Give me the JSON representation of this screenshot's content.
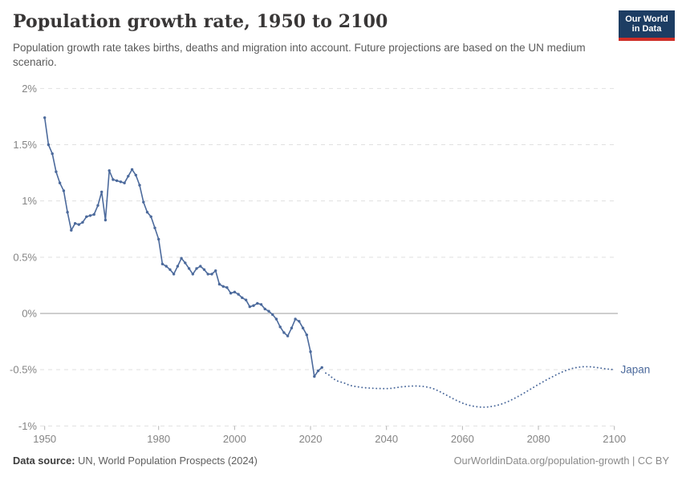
{
  "header": {
    "title": "Population growth rate, 1950 to 2100",
    "subtitle": "Population growth rate takes births, deaths and migration into account. Future projections are based on the UN medium scenario.",
    "logo": {
      "line1": "Our World",
      "line2": "in Data"
    }
  },
  "footer": {
    "source_label": "Data source:",
    "source_text": " UN, World Population Prospects (2024)",
    "credit": "OurWorldinData.org/population-growth | CC BY"
  },
  "chart_data": {
    "type": "line",
    "title": "Population growth rate, 1950 to 2100",
    "entity_label": "Japan",
    "xlabel": "",
    "ylabel": "",
    "xlim": [
      1950,
      2100
    ],
    "ylim": [
      -1,
      2
    ],
    "grid": true,
    "legend_position": "end-of-line-label",
    "x_ticks": [
      1950,
      1980,
      2000,
      2020,
      2040,
      2060,
      2080,
      2100
    ],
    "y_ticks": [
      {
        "value": 2,
        "label": "2%"
      },
      {
        "value": 1.5,
        "label": "1.5%"
      },
      {
        "value": 1,
        "label": "1%"
      },
      {
        "value": 0.5,
        "label": "0.5%"
      },
      {
        "value": 0,
        "label": "0%"
      },
      {
        "value": -0.5,
        "label": "-0.5%"
      },
      {
        "value": -1,
        "label": "-1%"
      }
    ],
    "series": [
      {
        "name": "Japan — estimates",
        "line_style": "solid",
        "markers": true,
        "start_year": 1950,
        "end_year": 2023,
        "x_step": 1,
        "values": [
          1.74,
          1.5,
          1.42,
          1.26,
          1.16,
          1.09,
          0.9,
          0.74,
          0.8,
          0.79,
          0.81,
          0.86,
          0.87,
          0.88,
          0.96,
          1.08,
          0.83,
          1.27,
          1.19,
          1.18,
          1.17,
          1.16,
          1.22,
          1.28,
          1.23,
          1.14,
          0.99,
          0.9,
          0.86,
          0.76,
          0.66,
          0.44,
          0.42,
          0.39,
          0.35,
          0.42,
          0.49,
          0.45,
          0.4,
          0.35,
          0.4,
          0.42,
          0.39,
          0.35,
          0.35,
          0.38,
          0.26,
          0.24,
          0.23,
          0.18,
          0.19,
          0.17,
          0.14,
          0.12,
          0.06,
          0.07,
          0.09,
          0.08,
          0.04,
          0.02,
          -0.01,
          -0.05,
          -0.12,
          -0.17,
          -0.2,
          -0.13,
          -0.05,
          -0.07,
          -0.13,
          -0.19,
          -0.34,
          -0.56,
          -0.51,
          -0.48
        ]
      },
      {
        "name": "Japan — UN medium projection",
        "line_style": "dotted",
        "markers": false,
        "start_year": 2024,
        "end_year": 2100,
        "x_step": 1,
        "values": [
          -0.53,
          -0.55,
          -0.58,
          -0.6,
          -0.61,
          -0.62,
          -0.635,
          -0.645,
          -0.65,
          -0.655,
          -0.66,
          -0.662,
          -0.664,
          -0.666,
          -0.667,
          -0.668,
          -0.668,
          -0.666,
          -0.662,
          -0.657,
          -0.652,
          -0.649,
          -0.647,
          -0.645,
          -0.645,
          -0.647,
          -0.65,
          -0.656,
          -0.664,
          -0.678,
          -0.694,
          -0.712,
          -0.73,
          -0.748,
          -0.766,
          -0.782,
          -0.797,
          -0.809,
          -0.818,
          -0.825,
          -0.83,
          -0.833,
          -0.833,
          -0.83,
          -0.825,
          -0.818,
          -0.809,
          -0.797,
          -0.783,
          -0.767,
          -0.75,
          -0.731,
          -0.712,
          -0.692,
          -0.671,
          -0.651,
          -0.631,
          -0.612,
          -0.593,
          -0.575,
          -0.557,
          -0.54,
          -0.524,
          -0.51,
          -0.498,
          -0.488,
          -0.481,
          -0.476,
          -0.473,
          -0.473,
          -0.475,
          -0.479,
          -0.484,
          -0.489,
          -0.493,
          -0.497,
          -0.5
        ]
      }
    ],
    "colors": {
      "line": "#4c6a9c",
      "entity_label": "#4c6a9c",
      "gridline": "#e0e0e0",
      "zero_line": "#9e9e9e",
      "tick_label": "#848484",
      "tick_mark": "#b5b5b5"
    }
  }
}
